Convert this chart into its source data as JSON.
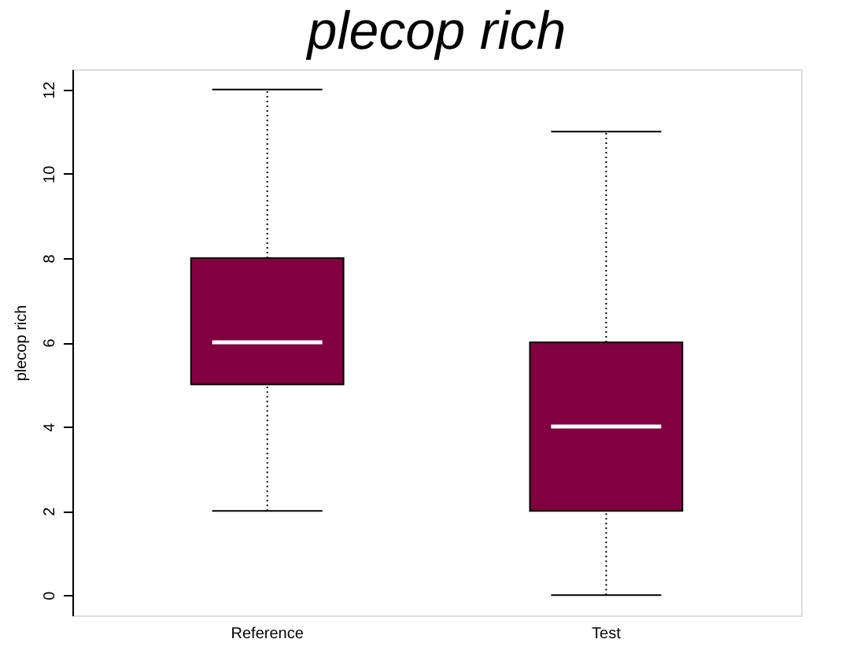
{
  "chart_data": {
    "type": "box",
    "title": "plecop rich",
    "ylabel": "plecop rich",
    "categories": [
      "Reference",
      "Test"
    ],
    "boxes": [
      {
        "low": 2,
        "q1": 5,
        "median": 6,
        "q3": 8,
        "high": 12
      },
      {
        "low": 0,
        "q1": 2,
        "median": 4,
        "q3": 6,
        "high": 11
      }
    ],
    "color": "#800040",
    "ylim": [
      -0.48,
      12.48
    ],
    "yticks": [
      0,
      2,
      4,
      6,
      8,
      10,
      12
    ],
    "grid": false,
    "line_style": "dotted"
  }
}
